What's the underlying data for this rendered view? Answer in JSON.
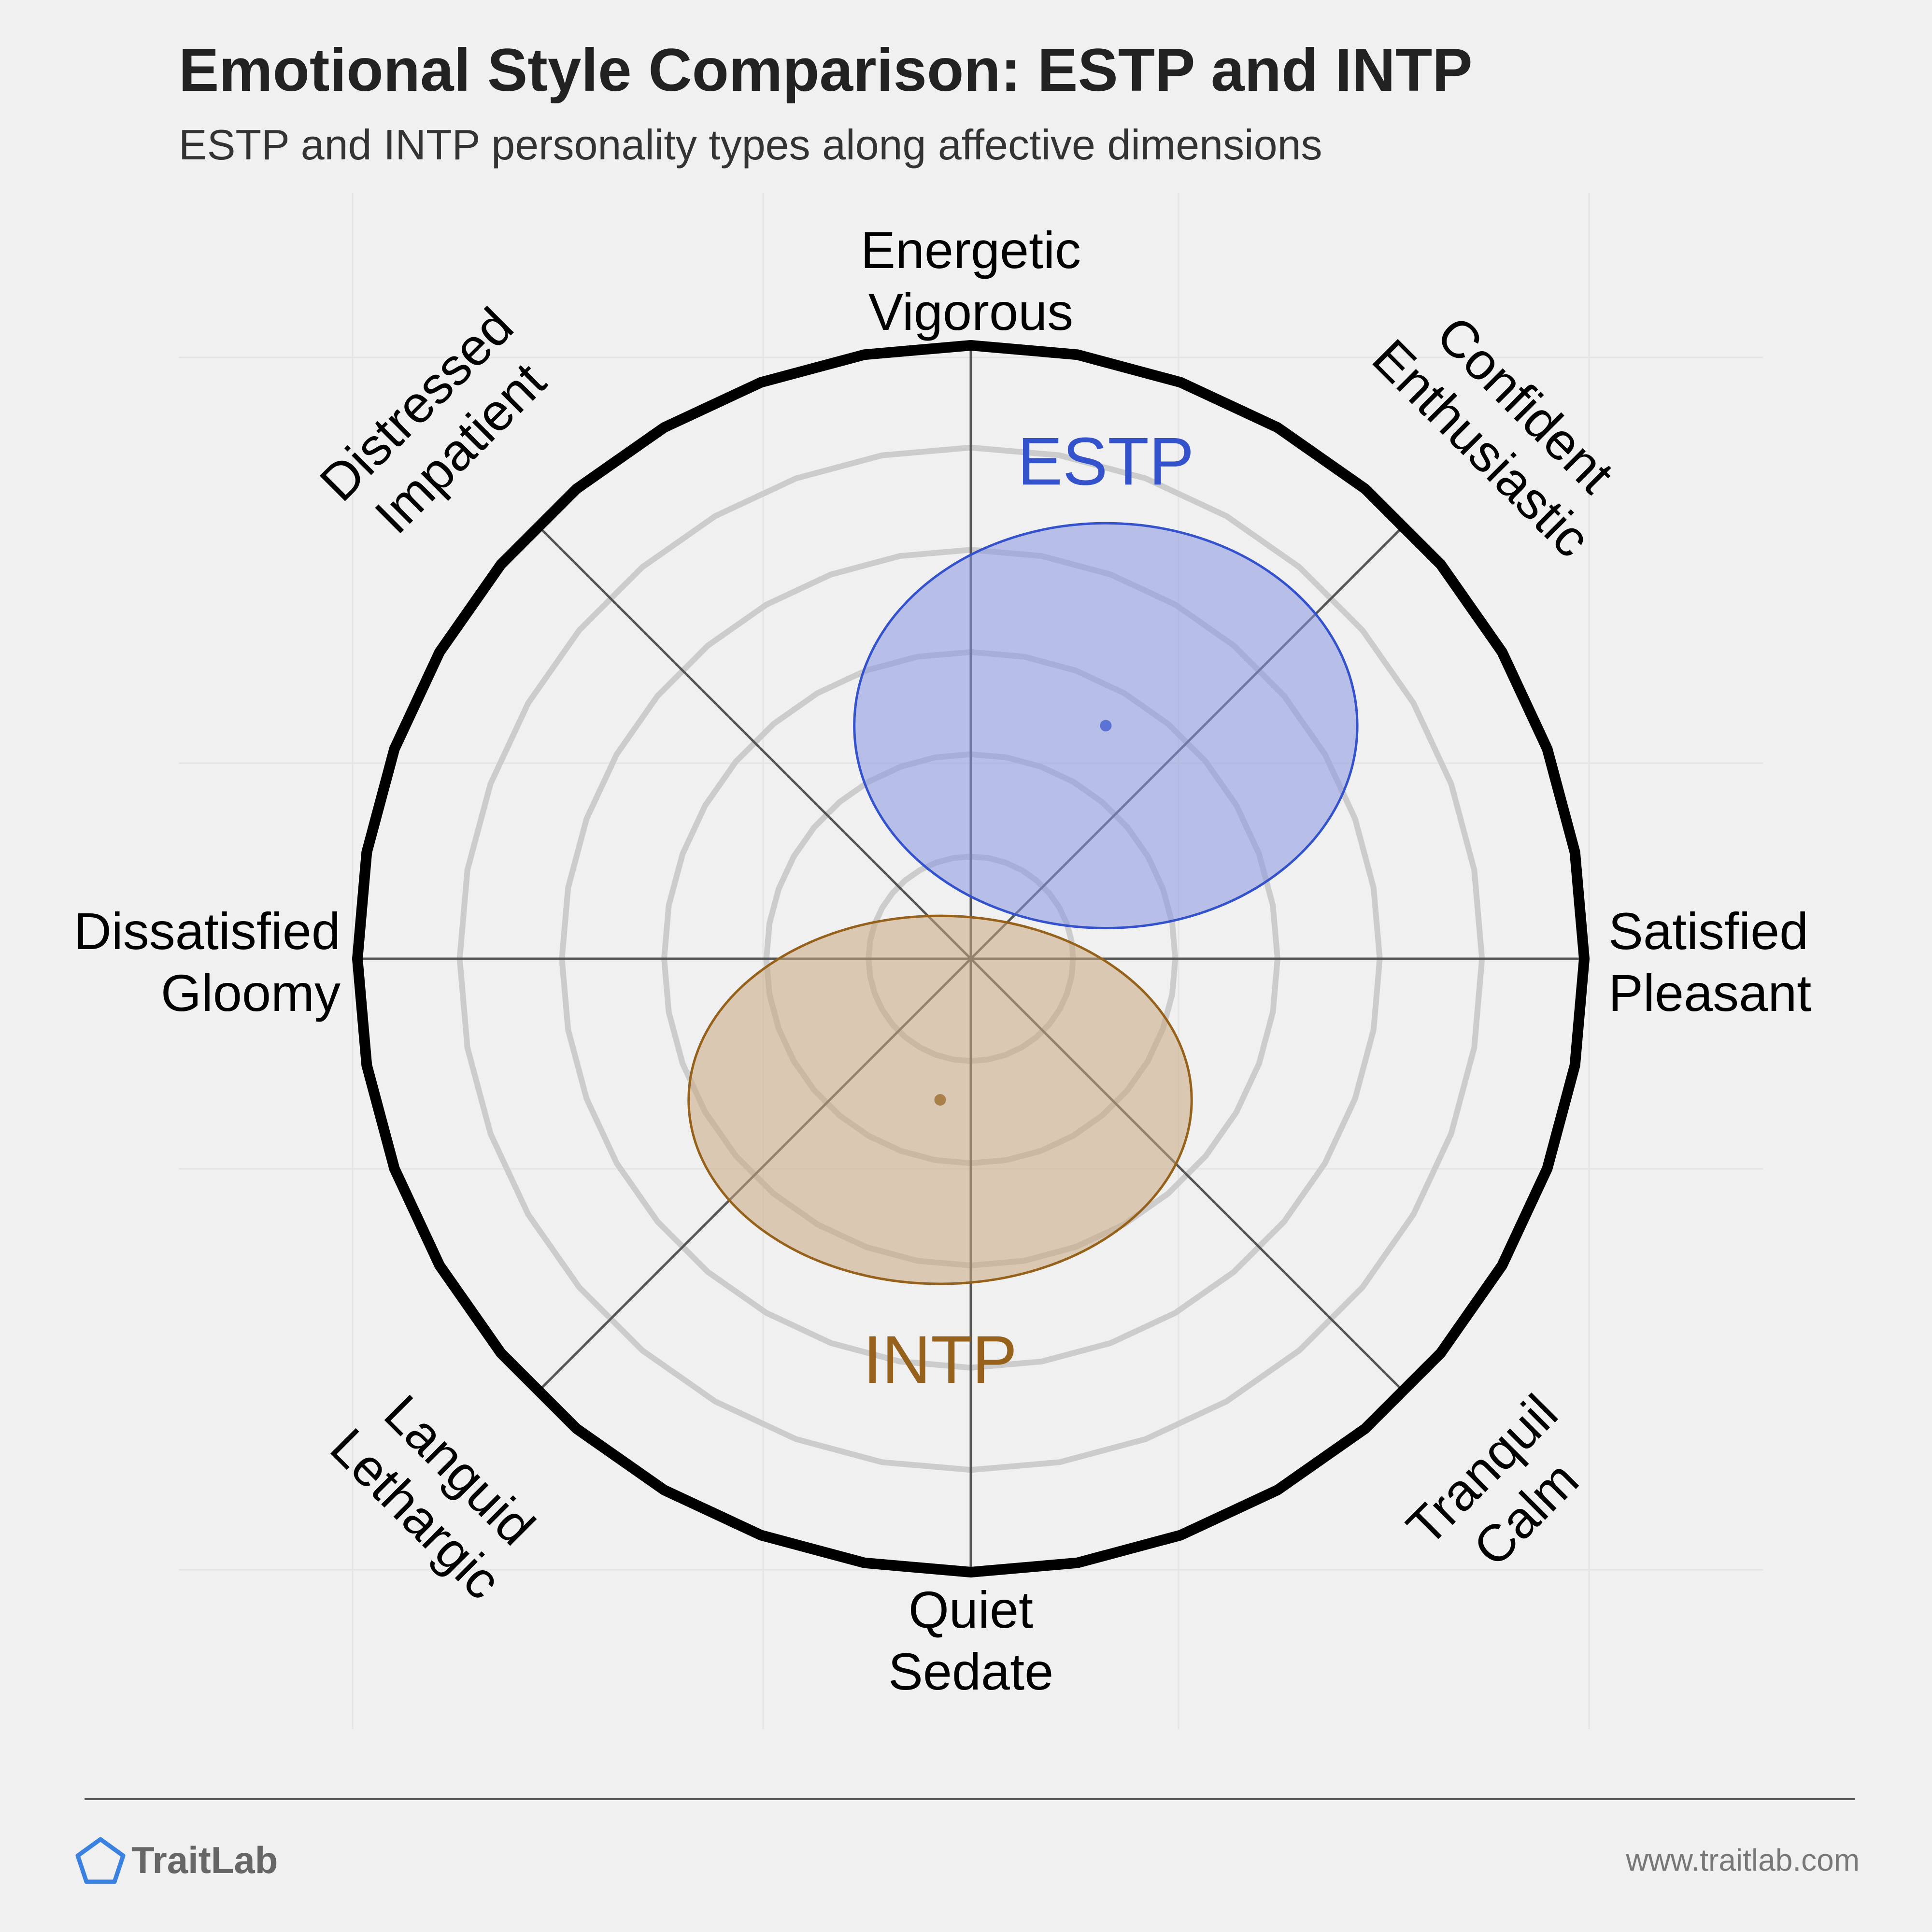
{
  "header": {
    "title": "Emotional Style Comparison: ESTP and INTP",
    "subtitle": "ESTP and INTP personality types along affective dimensions"
  },
  "chart_data": {
    "type": "scatter",
    "title": "Emotional Style Comparison: ESTP and INTP",
    "subtitle": "ESTP and INTP personality types along affective dimensions",
    "x_axis": {
      "negative": [
        "Dissatisfied",
        "Gloomy"
      ],
      "positive": [
        "Satisfied",
        "Pleasant"
      ]
    },
    "y_axis": {
      "negative": [
        "Quiet",
        "Sedate"
      ],
      "positive": [
        "Energetic",
        "Vigorous"
      ]
    },
    "diagonals": {
      "top_right": [
        "Confident",
        "Enthusiastic"
      ],
      "top_left": [
        "Distressed",
        "Impatient"
      ],
      "bottom_left": [
        "Languid",
        "Lethargic"
      ],
      "bottom_right": [
        "Tranquil",
        "Calm"
      ]
    },
    "xlim": [
      -1,
      1
    ],
    "ylim": [
      -1,
      1
    ],
    "rings": 6,
    "series": [
      {
        "name": "ESTP",
        "x": 0.22,
        "y": 0.38,
        "spread_x": 0.41,
        "spread_y": 0.33,
        "color": "#3352cc",
        "fill": "#8896e0"
      },
      {
        "name": "INTP",
        "x": -0.05,
        "y": -0.23,
        "spread_x": 0.41,
        "spread_y": 0.3,
        "color": "#96611b",
        "fill": "#c8a880"
      }
    ]
  },
  "footer": {
    "brand": "TraitLab",
    "url": "www.traitlab.com"
  },
  "colors": {
    "background": "#f0f0f0",
    "outer_ring": "#000000",
    "inner_rings": "#cccccc",
    "axes": "#555555",
    "estp": "#3352cc",
    "intp": "#96611b"
  }
}
